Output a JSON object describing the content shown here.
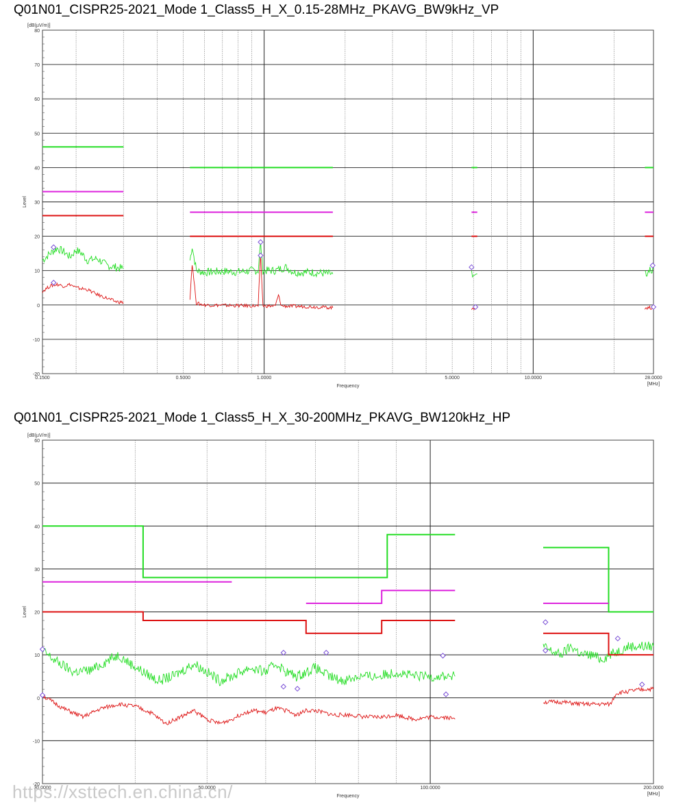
{
  "chart_data": [
    {
      "type": "line",
      "title": "Q01N01_CISPR25-2021_Mode 1_Class5_H_X_0.15-28MHz_PKAVG_BW9kHz_VP",
      "yunit": "[dB(µV/m)]",
      "ylabel": "Level",
      "xlabel": "Frequency",
      "xunit": "[MHz]",
      "xscale": "log",
      "xlim": [
        0.15,
        28
      ],
      "ylim": [
        -20,
        80
      ],
      "yticks": [
        80,
        70,
        60,
        50,
        40,
        30,
        20,
        10,
        0,
        -10,
        -20
      ],
      "xtick_labels": [
        {
          "x": 0.15,
          "label": "0.1500"
        },
        {
          "x": 0.5,
          "label": "0.5000"
        },
        {
          "x": 1,
          "label": "1.0000"
        },
        {
          "x": 5,
          "label": "5.0000"
        },
        {
          "x": 10,
          "label": "10.0000"
        },
        {
          "x": 28,
          "label": "28.0000"
        }
      ],
      "grid": true,
      "limits": [
        {
          "color": "#22dd22",
          "segments": [
            [
              [
                0.15,
                46
              ],
              [
                0.3,
                46
              ]
            ],
            [
              [
                0.53,
                40
              ],
              [
                1.8,
                40
              ]
            ],
            [
              [
                5.9,
                40
              ],
              [
                6.2,
                40
              ]
            ],
            [
              [
                26,
                40
              ],
              [
                28,
                40
              ]
            ]
          ]
        },
        {
          "color": "#dd22dd",
          "segments": [
            [
              [
                0.15,
                33
              ],
              [
                0.3,
                33
              ]
            ],
            [
              [
                0.53,
                27
              ],
              [
                1.8,
                27
              ]
            ],
            [
              [
                5.9,
                27
              ],
              [
                6.2,
                27
              ]
            ],
            [
              [
                26,
                27
              ],
              [
                28,
                27
              ]
            ]
          ]
        },
        {
          "color": "#dd1111",
          "segments": [
            [
              [
                0.15,
                26
              ],
              [
                0.3,
                26
              ]
            ],
            [
              [
                0.53,
                20
              ],
              [
                1.8,
                20
              ]
            ],
            [
              [
                5.9,
                20
              ],
              [
                6.2,
                20
              ]
            ],
            [
              [
                26,
                20
              ],
              [
                28,
                20
              ]
            ]
          ]
        }
      ],
      "traces": [
        {
          "color": "#22dd22",
          "segments": [
            [
              [
                0.15,
                13
              ],
              [
                0.16,
                15
              ],
              [
                0.17,
                16.5
              ],
              [
                0.18,
                15.5
              ],
              [
                0.19,
                14
              ],
              [
                0.2,
                16
              ],
              [
                0.21,
                15
              ],
              [
                0.22,
                13
              ],
              [
                0.24,
                13.5
              ],
              [
                0.26,
                11.5
              ],
              [
                0.28,
                11
              ],
              [
                0.3,
                10.5
              ]
            ],
            [
              [
                0.53,
                13
              ],
              [
                0.54,
                17
              ],
              [
                0.56,
                10
              ],
              [
                0.6,
                9.5
              ],
              [
                0.7,
                9.8
              ],
              [
                0.8,
                9.6
              ],
              [
                0.9,
                10
              ],
              [
                0.95,
                10
              ],
              [
                0.97,
                18
              ],
              [
                0.99,
                10
              ],
              [
                1.1,
                10
              ],
              [
                1.2,
                11
              ],
              [
                1.3,
                9.5
              ],
              [
                1.5,
                9.5
              ],
              [
                1.8,
                9
              ]
            ],
            [
              [
                5.9,
                10
              ],
              [
                5.95,
                8
              ],
              [
                6.0,
                9.5
              ],
              [
                6.1,
                9
              ],
              [
                6.2,
                9
              ]
            ],
            [
              [
                26,
                10
              ],
              [
                26.5,
                9
              ],
              [
                27,
                10.5
              ],
              [
                27.5,
                9.5
              ],
              [
                28,
                10.5
              ]
            ]
          ]
        },
        {
          "color": "#dd1111",
          "segments": [
            [
              [
                0.15,
                4
              ],
              [
                0.16,
                5.5
              ],
              [
                0.17,
                6
              ],
              [
                0.18,
                5.5
              ],
              [
                0.19,
                6
              ],
              [
                0.2,
                5
              ],
              [
                0.22,
                4.5
              ],
              [
                0.24,
                3
              ],
              [
                0.26,
                2
              ],
              [
                0.28,
                1
              ],
              [
                0.3,
                0.7
              ]
            ],
            [
              [
                0.53,
                2
              ],
              [
                0.54,
                12
              ],
              [
                0.56,
                0.5
              ],
              [
                0.6,
                0
              ],
              [
                0.8,
                -0.2
              ],
              [
                0.95,
                -0.3
              ],
              [
                0.97,
                14.5
              ],
              [
                0.99,
                -0.3
              ],
              [
                1.1,
                -0.3
              ],
              [
                1.13,
                2.8
              ],
              [
                1.16,
                -0.3
              ],
              [
                1.5,
                -0.5
              ],
              [
                1.8,
                -0.8
              ]
            ],
            [
              [
                5.9,
                -0.9
              ],
              [
                6.2,
                -0.9
              ]
            ],
            [
              [
                26,
                -0.8
              ],
              [
                28,
                -0.8
              ]
            ]
          ]
        }
      ],
      "markers": [
        {
          "x": 0.165,
          "y": 16.8
        },
        {
          "x": 0.165,
          "y": 6.5
        },
        {
          "x": 0.97,
          "y": 18.3
        },
        {
          "x": 0.97,
          "y": 14.4
        },
        {
          "x": 5.9,
          "y": 11
        },
        {
          "x": 6.1,
          "y": -0.6
        },
        {
          "x": 27.8,
          "y": 11.5
        },
        {
          "x": 28,
          "y": -0.6
        }
      ]
    },
    {
      "type": "line",
      "title": "Q01N01_CISPR25-2021_Mode 1_Class5_H_X_30-200MHz_PKAVG_BW120kHz_HP",
      "yunit": "[dB(µV/m)]",
      "ylabel": "Level",
      "xlabel": "Frequency",
      "xunit": "[MHz]",
      "xscale": "log",
      "xlim": [
        30,
        200
      ],
      "ylim": [
        -20,
        60
      ],
      "yticks": [
        60,
        50,
        40,
        30,
        20,
        10,
        0,
        -10,
        -20
      ],
      "xtick_labels": [
        {
          "x": 30,
          "label": "30.0000"
        },
        {
          "x": 50,
          "label": "50.0000"
        },
        {
          "x": 100,
          "label": "100.0000"
        },
        {
          "x": 200,
          "label": "200.0000"
        }
      ],
      "grid": true,
      "limits": [
        {
          "color": "#22dd22",
          "segments": [
            [
              [
                30,
                40
              ],
              [
                41,
                40
              ],
              [
                41,
                28
              ],
              [
                87.5,
                28
              ],
              [
                87.5,
                38
              ],
              [
                108,
                38
              ]
            ],
            [
              [
                142,
                35
              ],
              [
                174,
                35
              ],
              [
                174,
                20
              ],
              [
                200,
                20
              ]
            ]
          ]
        },
        {
          "color": "#dd22dd",
          "segments": [
            [
              [
                30,
                27
              ],
              [
                54,
                27
              ]
            ],
            [
              [
                68,
                22
              ],
              [
                86,
                22
              ],
              [
                86,
                25
              ],
              [
                108,
                25
              ]
            ],
            [
              [
                142,
                22
              ],
              [
                174,
                22
              ]
            ]
          ]
        },
        {
          "color": "#dd1111",
          "segments": [
            [
              [
                30,
                20
              ],
              [
                41,
                20
              ],
              [
                41,
                18
              ],
              [
                68,
                18
              ],
              [
                68,
                15
              ],
              [
                86,
                15
              ],
              [
                86,
                18
              ],
              [
                108,
                18
              ]
            ],
            [
              [
                142,
                15
              ],
              [
                174,
                15
              ],
              [
                174,
                10
              ],
              [
                200,
                10
              ]
            ]
          ]
        }
      ],
      "traces": [
        {
          "color": "#22dd22",
          "segments": [
            [
              [
                30,
                11
              ],
              [
                31,
                9
              ],
              [
                33,
                6
              ],
              [
                35,
                6.5
              ],
              [
                37,
                9
              ],
              [
                38,
                10
              ],
              [
                39,
                8.5
              ],
              [
                41,
                6
              ],
              [
                43,
                4
              ],
              [
                45,
                5
              ],
              [
                47,
                7
              ],
              [
                48,
                8
              ],
              [
                50,
                6
              ],
              [
                52,
                4
              ],
              [
                54,
                5
              ],
              [
                57,
                7
              ],
              [
                60,
                6
              ],
              [
                62,
                8
              ],
              [
                64,
                6
              ],
              [
                66,
                5
              ],
              [
                68,
                6
              ],
              [
                70,
                7
              ],
              [
                73,
                5
              ],
              [
                76,
                4
              ],
              [
                80,
                5
              ],
              [
                85,
                5
              ],
              [
                90,
                6
              ],
              [
                95,
                5
              ],
              [
                100,
                5
              ],
              [
                105,
                5
              ],
              [
                108,
                5
              ]
            ],
            [
              [
                142,
                12
              ],
              [
                145,
                11
              ],
              [
                150,
                10
              ],
              [
                155,
                12
              ],
              [
                160,
                10
              ],
              [
                165,
                10
              ],
              [
                170,
                9
              ],
              [
                175,
                10
              ],
              [
                180,
                11
              ],
              [
                185,
                12
              ],
              [
                190,
                12
              ],
              [
                195,
                12
              ],
              [
                200,
                12
              ]
            ]
          ]
        },
        {
          "color": "#dd1111",
          "segments": [
            [
              [
                30,
                0.5
              ],
              [
                32,
                -2.5
              ],
              [
                34,
                -4.5
              ],
              [
                36,
                -2.5
              ],
              [
                38,
                -1.5
              ],
              [
                40,
                -2
              ],
              [
                42,
                -3.5
              ],
              [
                44,
                -6
              ],
              [
                46,
                -4.5
              ],
              [
                48,
                -3
              ],
              [
                50,
                -5
              ],
              [
                52,
                -6
              ],
              [
                54,
                -5
              ],
              [
                56,
                -3.5
              ],
              [
                58,
                -3
              ],
              [
                60,
                -3.5
              ],
              [
                62,
                -2.5
              ],
              [
                64,
                -3
              ],
              [
                66,
                -4
              ],
              [
                68,
                -3
              ],
              [
                70,
                -3
              ],
              [
                74,
                -4
              ],
              [
                78,
                -4
              ],
              [
                82,
                -4.5
              ],
              [
                86,
                -4.5
              ],
              [
                90,
                -4
              ],
              [
                95,
                -5
              ],
              [
                100,
                -4.5
              ],
              [
                105,
                -4.5
              ],
              [
                108,
                -5
              ]
            ],
            [
              [
                142,
                -1
              ],
              [
                150,
                -1
              ],
              [
                160,
                -1.5
              ],
              [
                170,
                -1.5
              ],
              [
                175,
                -1.5
              ],
              [
                178,
                1
              ],
              [
                185,
                1.5
              ],
              [
                195,
                2
              ],
              [
                200,
                2
              ]
            ]
          ]
        }
      ],
      "markers": [
        {
          "x": 30,
          "y": 11.3
        },
        {
          "x": 30,
          "y": 0.6
        },
        {
          "x": 63.4,
          "y": 10.5
        },
        {
          "x": 63.4,
          "y": 2.6
        },
        {
          "x": 72.4,
          "y": 10.5
        },
        {
          "x": 66.2,
          "y": 2.1
        },
        {
          "x": 104,
          "y": 9.8
        },
        {
          "x": 105,
          "y": 0.8
        },
        {
          "x": 143,
          "y": 17.6
        },
        {
          "x": 143,
          "y": 11
        },
        {
          "x": 179,
          "y": 13.8
        },
        {
          "x": 193,
          "y": 3.1
        }
      ]
    }
  ],
  "watermark": "https://xsttech.en.china.cn/"
}
